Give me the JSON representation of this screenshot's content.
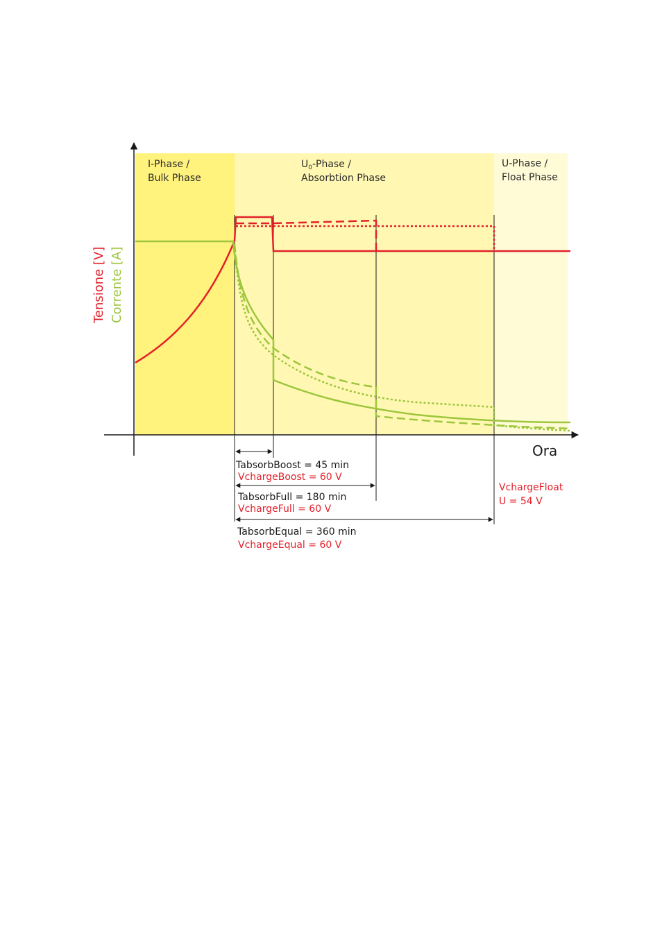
{
  "colors": {
    "voltage": "#e3202a",
    "current": "#9cc63c",
    "bulk_bg": "#fff27d",
    "absorption_bg": "#fff7b2",
    "float_bg": "#fffbd6"
  },
  "phases": {
    "bulk": {
      "line1": "I-Phase /",
      "line2": "Bulk Phase"
    },
    "absorption": {
      "line1_prefix": "U",
      "line1_sub": "0",
      "line1_suffix": "-Phase /",
      "line2": "Absorbtion Phase"
    },
    "float": {
      "line1": "U-Phase /",
      "line2": "Float Phase"
    }
  },
  "axes": {
    "x_label": "Ora",
    "y_label_voltage": "Tensione [V]",
    "y_label_current": "Corrente [A]"
  },
  "durations": {
    "boost": {
      "time": "TabsorbBoost = 45 min",
      "voltage": "VchargeBoost = 60 V"
    },
    "full": {
      "time": "TabsorbFull = 180 min",
      "voltage": "VchargeFull = 60 V"
    },
    "equal": {
      "time": "TabsorbEqual = 360 min",
      "voltage": "VchargeEqual = 60 V"
    }
  },
  "float_setting": {
    "line1": "VchargeFloat",
    "line2": "U = 54 V"
  }
}
